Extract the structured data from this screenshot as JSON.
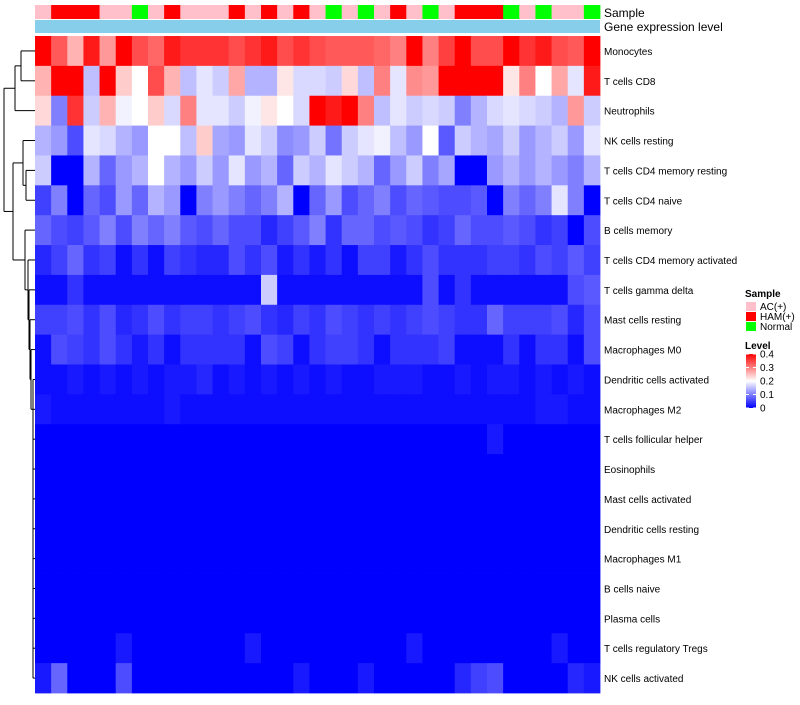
{
  "chart_data": {
    "type": "heatmap",
    "title": "",
    "annotation_titles": {
      "sample": "Sample",
      "gene_expression_level": "Gene expression level"
    },
    "rows": [
      "Monocytes",
      "T cells CD8",
      "Neutrophils",
      "NK cells resting",
      "T cells CD4 memory resting",
      "T cells CD4 naive",
      "B cells memory",
      "T cells CD4 memory activated",
      "T cells gamma delta",
      "Mast cells resting",
      "Macrophages M0",
      "Dendritic cells activated",
      "Macrophages M2",
      "T cells follicular helper",
      "Eosinophils",
      "Mast cells activated",
      "Dendritic cells resting",
      "Macrophages M1",
      "B cells naive",
      "Plasma cells",
      "T cells regulatory  Tregs",
      "NK cells activated"
    ],
    "sample_groups": [
      "AC(+)",
      "HAM(+)",
      "HAM(+)",
      "HAM(+)",
      "AC(+)",
      "AC(+)",
      "Normal",
      "AC(+)",
      "HAM(+)",
      "AC(+)",
      "AC(+)",
      "AC(+)",
      "HAM(+)",
      "AC(+)",
      "HAM(+)",
      "AC(+)",
      "HAM(+)",
      "AC(+)",
      "Normal",
      "AC(+)",
      "Normal",
      "AC(+)",
      "HAM(+)",
      "AC(+)",
      "Normal",
      "AC(+)",
      "HAM(+)",
      "HAM(+)",
      "HAM(+)",
      "Normal",
      "AC(+)",
      "Normal",
      "AC(+)",
      "AC(+)",
      "Normal"
    ],
    "legend": {
      "sample": {
        "title": "Sample",
        "entries": [
          {
            "label": "AC(+)",
            "color": "#ffc0cb"
          },
          {
            "label": "HAM(+)",
            "color": "#ff0000"
          },
          {
            "label": "Normal",
            "color": "#00ff00"
          }
        ]
      },
      "level": {
        "title": "Level",
        "ticks": [
          0.4,
          0.3,
          0.2,
          0.1,
          0
        ],
        "range": [
          0,
          0.4
        ],
        "colors": {
          "low": "#0000ff",
          "mid": "#ffffff",
          "high": "#ff0000"
        }
      }
    },
    "gene_expression_color": "#87ceeb",
    "values": [
      [
        0.4,
        0.33,
        0.26,
        0.38,
        0.28,
        0.4,
        0.34,
        0.32,
        0.38,
        0.36,
        0.36,
        0.36,
        0.34,
        0.36,
        0.38,
        0.34,
        0.36,
        0.34,
        0.33,
        0.33,
        0.33,
        0.32,
        0.3,
        0.4,
        0.3,
        0.35,
        0.4,
        0.34,
        0.34,
        0.4,
        0.36,
        0.38,
        0.34,
        0.33,
        0.4
      ],
      [
        0.26,
        0.4,
        0.4,
        0.15,
        0.4,
        0.24,
        0.2,
        0.34,
        0.26,
        0.15,
        0.18,
        0.16,
        0.27,
        0.14,
        0.14,
        0.22,
        0.17,
        0.17,
        0.16,
        0.23,
        0.15,
        0.3,
        0.18,
        0.29,
        0.28,
        0.4,
        0.4,
        0.4,
        0.4,
        0.22,
        0.3,
        0.2,
        0.27,
        0.18,
        0.38
      ],
      [
        0.23,
        0.1,
        0.36,
        0.16,
        0.26,
        0.19,
        0.2,
        0.24,
        0.17,
        0.3,
        0.18,
        0.18,
        0.16,
        0.19,
        0.22,
        0.2,
        0.17,
        0.4,
        0.38,
        0.4,
        0.3,
        0.15,
        0.18,
        0.16,
        0.17,
        0.16,
        0.1,
        0.14,
        0.17,
        0.18,
        0.17,
        0.16,
        0.14,
        0.28,
        0.16
      ],
      [
        0.14,
        0.12,
        0.06,
        0.18,
        0.17,
        0.14,
        0.12,
        0.2,
        0.2,
        0.15,
        0.24,
        0.13,
        0.12,
        0.18,
        0.16,
        0.11,
        0.12,
        0.16,
        0.09,
        0.16,
        0.18,
        0.19,
        0.15,
        0.12,
        0.2,
        0.07,
        0.16,
        0.14,
        0.13,
        0.16,
        0.12,
        0.14,
        0.16,
        0.12,
        0.18
      ],
      [
        0.16,
        0.0,
        0.0,
        0.14,
        0.08,
        0.12,
        0.14,
        0.2,
        0.14,
        0.12,
        0.16,
        0.12,
        0.18,
        0.12,
        0.14,
        0.08,
        0.16,
        0.14,
        0.18,
        0.16,
        0.14,
        0.08,
        0.12,
        0.16,
        0.1,
        0.13,
        0.0,
        0.0,
        0.12,
        0.14,
        0.12,
        0.14,
        0.12,
        0.1,
        0.14
      ],
      [
        0.05,
        0.1,
        0.0,
        0.08,
        0.06,
        0.12,
        0.08,
        0.14,
        0.12,
        0.0,
        0.1,
        0.12,
        0.1,
        0.08,
        0.1,
        0.14,
        0.0,
        0.08,
        0.12,
        0.06,
        0.08,
        0.1,
        0.06,
        0.08,
        0.07,
        0.06,
        0.06,
        0.07,
        0.0,
        0.1,
        0.08,
        0.1,
        0.18,
        0.1,
        0.0
      ],
      [
        0.08,
        0.06,
        0.05,
        0.07,
        0.1,
        0.06,
        0.1,
        0.08,
        0.1,
        0.07,
        0.06,
        0.08,
        0.06,
        0.06,
        0.03,
        0.05,
        0.07,
        0.1,
        0.04,
        0.08,
        0.08,
        0.06,
        0.07,
        0.06,
        0.04,
        0.05,
        0.08,
        0.06,
        0.06,
        0.07,
        0.06,
        0.04,
        0.05,
        0.0,
        0.06
      ],
      [
        0.03,
        0.05,
        0.08,
        0.04,
        0.05,
        0.01,
        0.04,
        0.01,
        0.05,
        0.04,
        0.03,
        0.03,
        0.06,
        0.04,
        0.06,
        0.02,
        0.04,
        0.02,
        0.04,
        0.01,
        0.05,
        0.05,
        0.02,
        0.04,
        0.06,
        0.04,
        0.04,
        0.04,
        0.05,
        0.05,
        0.04,
        0.06,
        0.05,
        0.07,
        0.05
      ],
      [
        0.01,
        0.01,
        0.04,
        0.01,
        0.01,
        0.01,
        0.01,
        0.01,
        0.01,
        0.01,
        0.01,
        0.01,
        0.01,
        0.01,
        0.16,
        0.01,
        0.01,
        0.01,
        0.01,
        0.01,
        0.01,
        0.01,
        0.01,
        0.01,
        0.06,
        0.01,
        0.04,
        0.01,
        0.01,
        0.01,
        0.01,
        0.01,
        0.01,
        0.06,
        0.07
      ],
      [
        0.05,
        0.05,
        0.06,
        0.04,
        0.06,
        0.03,
        0.04,
        0.06,
        0.04,
        0.05,
        0.05,
        0.04,
        0.05,
        0.06,
        0.04,
        0.03,
        0.05,
        0.04,
        0.06,
        0.05,
        0.04,
        0.05,
        0.04,
        0.05,
        0.06,
        0.05,
        0.04,
        0.04,
        0.08,
        0.05,
        0.05,
        0.05,
        0.06,
        0.03,
        0.06
      ],
      [
        0.01,
        0.06,
        0.05,
        0.04,
        0.06,
        0.04,
        0.02,
        0.04,
        0.01,
        0.04,
        0.04,
        0.04,
        0.04,
        0.01,
        0.06,
        0.05,
        0.01,
        0.04,
        0.05,
        0.05,
        0.04,
        0.01,
        0.04,
        0.04,
        0.04,
        0.05,
        0.01,
        0.01,
        0.01,
        0.04,
        0.01,
        0.04,
        0.04,
        0.01,
        0.06
      ],
      [
        0.01,
        0.01,
        0.02,
        0.01,
        0.02,
        0.01,
        0.02,
        0.01,
        0.02,
        0.02,
        0.03,
        0.01,
        0.02,
        0.01,
        0.02,
        0.01,
        0.02,
        0.01,
        0.02,
        0.01,
        0.01,
        0.02,
        0.02,
        0.02,
        0.01,
        0.01,
        0.02,
        0.01,
        0.02,
        0.02,
        0.01,
        0.02,
        0.01,
        0.02,
        0.01
      ],
      [
        0.02,
        0.01,
        0.01,
        0.01,
        0.01,
        0.01,
        0.01,
        0.01,
        0.02,
        0.01,
        0.01,
        0.01,
        0.01,
        0.01,
        0.01,
        0.01,
        0.01,
        0.01,
        0.01,
        0.01,
        0.01,
        0.01,
        0.01,
        0.01,
        0.01,
        0.01,
        0.01,
        0.01,
        0.01,
        0.01,
        0.01,
        0.02,
        0.02,
        0.01,
        0.01
      ],
      [
        0.0,
        0.0,
        0.0,
        0.0,
        0.0,
        0.0,
        0.0,
        0.0,
        0.0,
        0.0,
        0.0,
        0.0,
        0.0,
        0.0,
        0.0,
        0.0,
        0.0,
        0.0,
        0.0,
        0.0,
        0.0,
        0.0,
        0.0,
        0.0,
        0.0,
        0.0,
        0.0,
        0.0,
        0.02,
        0.0,
        0.0,
        0.0,
        0.0,
        0.0,
        0.0
      ],
      [
        0.0,
        0.0,
        0.0,
        0.0,
        0.0,
        0.0,
        0.0,
        0.0,
        0.0,
        0.0,
        0.0,
        0.0,
        0.0,
        0.0,
        0.0,
        0.0,
        0.0,
        0.0,
        0.0,
        0.0,
        0.0,
        0.0,
        0.0,
        0.0,
        0.0,
        0.0,
        0.0,
        0.0,
        0.0,
        0.0,
        0.0,
        0.0,
        0.0,
        0.0,
        0.0
      ],
      [
        0.0,
        0.0,
        0.0,
        0.0,
        0.0,
        0.0,
        0.0,
        0.0,
        0.0,
        0.0,
        0.0,
        0.0,
        0.0,
        0.0,
        0.0,
        0.0,
        0.0,
        0.0,
        0.0,
        0.0,
        0.0,
        0.0,
        0.0,
        0.0,
        0.0,
        0.0,
        0.0,
        0.0,
        0.0,
        0.0,
        0.0,
        0.0,
        0.0,
        0.0,
        0.0
      ],
      [
        0.0,
        0.0,
        0.0,
        0.0,
        0.0,
        0.0,
        0.0,
        0.0,
        0.0,
        0.0,
        0.0,
        0.0,
        0.0,
        0.0,
        0.0,
        0.0,
        0.0,
        0.0,
        0.0,
        0.0,
        0.0,
        0.0,
        0.0,
        0.0,
        0.0,
        0.0,
        0.0,
        0.0,
        0.0,
        0.0,
        0.0,
        0.0,
        0.0,
        0.0,
        0.0
      ],
      [
        0.0,
        0.0,
        0.0,
        0.0,
        0.0,
        0.0,
        0.0,
        0.0,
        0.0,
        0.0,
        0.0,
        0.0,
        0.0,
        0.0,
        0.0,
        0.0,
        0.0,
        0.0,
        0.0,
        0.0,
        0.0,
        0.0,
        0.0,
        0.0,
        0.0,
        0.0,
        0.0,
        0.0,
        0.0,
        0.0,
        0.0,
        0.0,
        0.0,
        0.0,
        0.0
      ],
      [
        0.0,
        0.0,
        0.0,
        0.0,
        0.0,
        0.0,
        0.0,
        0.0,
        0.0,
        0.0,
        0.0,
        0.0,
        0.0,
        0.0,
        0.0,
        0.0,
        0.0,
        0.0,
        0.0,
        0.0,
        0.0,
        0.0,
        0.0,
        0.0,
        0.0,
        0.0,
        0.0,
        0.0,
        0.0,
        0.0,
        0.0,
        0.0,
        0.0,
        0.0,
        0.0
      ],
      [
        0.0,
        0.0,
        0.0,
        0.0,
        0.0,
        0.0,
        0.0,
        0.0,
        0.0,
        0.0,
        0.0,
        0.0,
        0.0,
        0.0,
        0.0,
        0.0,
        0.0,
        0.0,
        0.0,
        0.0,
        0.0,
        0.0,
        0.0,
        0.0,
        0.0,
        0.0,
        0.0,
        0.0,
        0.0,
        0.0,
        0.0,
        0.0,
        0.0,
        0.0,
        0.0
      ],
      [
        0.0,
        0.0,
        0.0,
        0.0,
        0.0,
        0.02,
        0.0,
        0.0,
        0.0,
        0.0,
        0.0,
        0.0,
        0.0,
        0.02,
        0.0,
        0.0,
        0.0,
        0.0,
        0.0,
        0.0,
        0.0,
        0.0,
        0.0,
        0.02,
        0.0,
        0.0,
        0.0,
        0.0,
        0.0,
        0.0,
        0.0,
        0.0,
        0.02,
        0.0,
        0.0
      ],
      [
        0.02,
        0.08,
        0.0,
        0.0,
        0.0,
        0.06,
        0.0,
        0.0,
        0.0,
        0.0,
        0.0,
        0.0,
        0.0,
        0.0,
        0.0,
        0.0,
        0.02,
        0.0,
        0.0,
        0.0,
        0.02,
        0.0,
        0.0,
        0.0,
        0.0,
        0.0,
        0.03,
        0.05,
        0.06,
        0.0,
        0.0,
        0.0,
        0.0,
        0.03,
        0.02
      ]
    ]
  }
}
